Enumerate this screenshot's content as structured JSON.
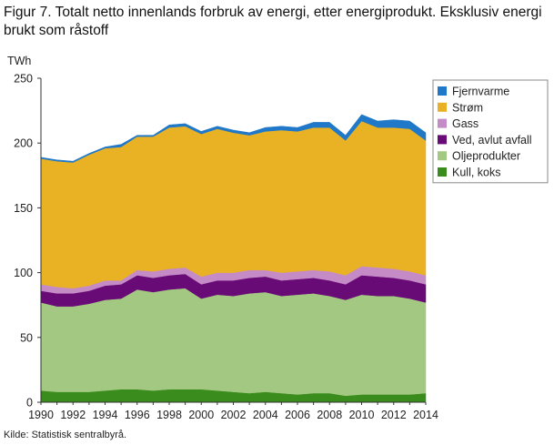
{
  "title": "Figur 7. Totalt netto innenlands forbruk av energi, etter energiprodukt. Eksklusiv energi brukt som råstoff",
  "source": "Kilde: Statistisk sentralbyrå.",
  "chart_data": {
    "type": "area",
    "stacked": true,
    "ylabel": "TWh",
    "xlabel": "",
    "ylim": [
      0,
      250
    ],
    "yticks": [
      0,
      50,
      100,
      150,
      200,
      250
    ],
    "xticks": [
      1990,
      1992,
      1994,
      1996,
      1998,
      2000,
      2002,
      2004,
      2006,
      2008,
      2010,
      2012,
      2014
    ],
    "grid": false,
    "legend_position": "right",
    "x": [
      1990,
      1991,
      1992,
      1993,
      1994,
      1995,
      1996,
      1997,
      1998,
      1999,
      2000,
      2001,
      2002,
      2003,
      2004,
      2005,
      2006,
      2007,
      2008,
      2009,
      2010,
      2011,
      2012,
      2013,
      2014
    ],
    "series": [
      {
        "name": "Kull, koks",
        "color": "#3a8c1c",
        "values": [
          9,
          8,
          8,
          8,
          9,
          10,
          10,
          9,
          10,
          10,
          10,
          9,
          8,
          7,
          8,
          7,
          6,
          7,
          7,
          5,
          6,
          6,
          6,
          6,
          7
        ]
      },
      {
        "name": "Oljeprodukter",
        "color": "#a3c882",
        "values": [
          68,
          66,
          66,
          68,
          70,
          70,
          77,
          76,
          77,
          78,
          70,
          74,
          74,
          77,
          77,
          75,
          77,
          77,
          75,
          74,
          77,
          76,
          76,
          74,
          70
        ]
      },
      {
        "name": "Ved, avlut avfall",
        "color": "#690b77",
        "values": [
          9,
          10,
          10,
          10,
          11,
          11,
          11,
          11,
          11,
          11,
          11,
          11,
          12,
          12,
          12,
          12,
          12,
          12,
          12,
          12,
          15,
          15,
          14,
          14,
          14
        ]
      },
      {
        "name": "Gass",
        "color": "#c58bc6",
        "values": [
          5,
          5,
          4,
          4,
          4,
          3,
          4,
          5,
          5,
          5,
          6,
          6,
          6,
          6,
          5,
          6,
          6,
          6,
          7,
          7,
          7,
          7,
          7,
          7,
          7
        ]
      },
      {
        "name": "Strøm",
        "color": "#e9b224",
        "values": [
          97,
          97,
          97,
          101,
          102,
          103,
          103,
          104,
          109,
          109,
          110,
          111,
          108,
          104,
          107,
          110,
          108,
          110,
          111,
          104,
          112,
          108,
          109,
          110,
          104
        ]
      },
      {
        "name": "Fjernvarme",
        "color": "#1f78c8",
        "values": [
          1,
          1,
          1,
          1,
          1,
          2,
          1,
          1,
          2,
          2,
          2,
          2,
          2,
          2,
          3,
          3,
          3,
          4,
          4,
          4,
          5,
          5,
          6,
          6,
          6
        ]
      }
    ],
    "legend_order": [
      "Fjernvarme",
      "Strøm",
      "Gass",
      "Ved, avlut avfall",
      "Oljeprodukter",
      "Kull, koks"
    ]
  }
}
